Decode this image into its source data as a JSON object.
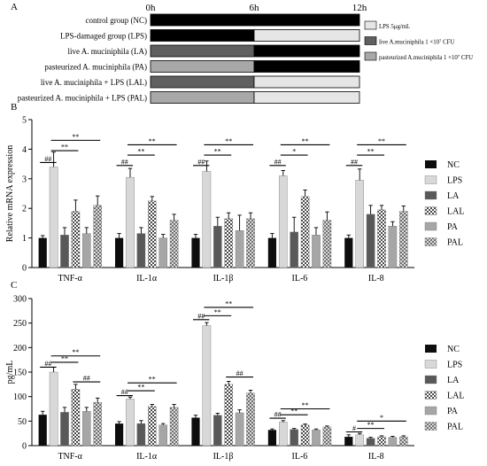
{
  "colors": {
    "NC": "#0d0d0d",
    "LPS": "#d8d8d8",
    "LA": "#595959",
    "LAL": "#b4b4b4",
    "PA": "#a6a6a6",
    "PAL": "#8c8c8c",
    "timeline_black": "#000000",
    "timeline_lps": "#e6e6e6",
    "timeline_live": "#606060",
    "timeline_past": "#a8a8a8"
  },
  "panel_a": {
    "label": "A",
    "time_labels": [
      "0h",
      "6h",
      "12h"
    ],
    "groups": [
      {
        "name": "control group (NC)",
        "first_half": "black",
        "second_half": "black"
      },
      {
        "name": "LPS-damaged group (LPS)",
        "first_half": "black",
        "second_half": "lps"
      },
      {
        "name": "live A. muciniphila (LA)",
        "first_half": "live",
        "second_half": "black"
      },
      {
        "name": "pasteurized A. muciniphila (PA)",
        "first_half": "past",
        "second_half": "black"
      },
      {
        "name": "live A. muciniphila + LPS (LAL)",
        "first_half": "live",
        "second_half": "lps"
      },
      {
        "name": "pasteurized A. muciniphila + LPS (PAL)",
        "first_half": "past",
        "second_half": "lps"
      }
    ],
    "legend": [
      {
        "label": "LPS 5μg/mL",
        "key": "lps"
      },
      {
        "label": "live A.muciniphila 1 ×10⁷ CFU",
        "key": "live"
      },
      {
        "label": "pasteurized A.muciniphila 1 ×10⁷ CFU",
        "key": "past"
      }
    ]
  },
  "chart_data": [
    {
      "panel": "B",
      "type": "bar",
      "ylabel": "Relative mRNA expression",
      "ylim": [
        0,
        5
      ],
      "yticks": [
        "0",
        "1",
        "2",
        "3",
        "4",
        "5"
      ],
      "categories": [
        "TNF-α",
        "IL-1α",
        "IL-1β",
        "IL-6",
        "IL-8"
      ],
      "legend": [
        "NC",
        "LPS",
        "LA",
        "LAL",
        "PA",
        "PAL"
      ],
      "series": [
        {
          "name": "NC",
          "values": [
            1.0,
            1.0,
            1.0,
            1.0,
            1.0
          ],
          "errors": [
            0.08,
            0.15,
            0.12,
            0.15,
            0.1
          ]
        },
        {
          "name": "LPS",
          "values": [
            3.4,
            3.05,
            3.25,
            3.1,
            2.95
          ],
          "errors": [
            0.5,
            0.3,
            0.35,
            0.18,
            0.38
          ]
        },
        {
          "name": "LA",
          "values": [
            1.1,
            1.15,
            1.4,
            1.2,
            1.8
          ],
          "errors": [
            0.25,
            0.2,
            0.3,
            0.5,
            0.3
          ]
        },
        {
          "name": "LAL",
          "values": [
            1.9,
            2.25,
            1.65,
            2.4,
            1.95
          ],
          "errors": [
            0.38,
            0.15,
            0.2,
            0.22,
            0.15
          ]
        },
        {
          "name": "PA",
          "values": [
            1.15,
            1.0,
            1.25,
            1.1,
            1.4
          ],
          "errors": [
            0.2,
            0.12,
            0.52,
            0.25,
            0.15
          ]
        },
        {
          "name": "PAL",
          "values": [
            2.1,
            1.6,
            1.65,
            1.6,
            1.9
          ],
          "errors": [
            0.32,
            0.2,
            0.2,
            0.28,
            0.18
          ]
        }
      ],
      "annotations": [
        {
          "group": 0,
          "text": "##",
          "from": 0,
          "to": 1,
          "level": 3.55
        },
        {
          "group": 0,
          "text": "**",
          "from": 1,
          "to": 3,
          "level": 3.95
        },
        {
          "group": 0,
          "text": "**",
          "from": 1,
          "to": 5,
          "level": 4.3
        },
        {
          "group": 1,
          "text": "##",
          "from": 0,
          "to": 1,
          "level": 3.45
        },
        {
          "group": 1,
          "text": "**",
          "from": 1,
          "to": 3,
          "level": 3.8
        },
        {
          "group": 1,
          "text": "**",
          "from": 1,
          "to": 5,
          "level": 4.15
        },
        {
          "group": 2,
          "text": "##",
          "from": 0,
          "to": 1,
          "level": 3.45
        },
        {
          "group": 2,
          "text": "**",
          "from": 1,
          "to": 3,
          "level": 3.8
        },
        {
          "group": 2,
          "text": "**",
          "from": 1,
          "to": 5,
          "level": 4.15
        },
        {
          "group": 3,
          "text": "##",
          "from": 0,
          "to": 1,
          "level": 3.45
        },
        {
          "group": 3,
          "text": "*",
          "from": 1,
          "to": 3,
          "level": 3.8
        },
        {
          "group": 3,
          "text": "**",
          "from": 1,
          "to": 5,
          "level": 4.15
        },
        {
          "group": 4,
          "text": "##",
          "from": 0,
          "to": 1,
          "level": 3.45
        },
        {
          "group": 4,
          "text": "**",
          "from": 1,
          "to": 3,
          "level": 3.8
        },
        {
          "group": 4,
          "text": "**",
          "from": 1,
          "to": 5,
          "level": 4.15
        }
      ]
    },
    {
      "panel": "C",
      "type": "bar",
      "ylabel": "pg/mL",
      "ylim": [
        0,
        300
      ],
      "yticks": [
        "0",
        "50",
        "100",
        "150",
        "200",
        "250",
        "300"
      ],
      "categories": [
        "TNF-α",
        "IL-1α",
        "IL-1β",
        "IL-6",
        "IL-8"
      ],
      "legend": [
        "NC",
        "LPS",
        "LA",
        "LAL",
        "PA",
        "PAL"
      ],
      "series": [
        {
          "name": "NC",
          "values": [
            63,
            45,
            57,
            32,
            18
          ],
          "errors": [
            7,
            4,
            5,
            2,
            4
          ]
        },
        {
          "name": "LPS",
          "values": [
            150,
            95,
            245,
            48,
            22
          ],
          "errors": [
            10,
            4,
            6,
            3,
            3
          ]
        },
        {
          "name": "LA",
          "values": [
            68,
            45,
            62,
            33,
            15
          ],
          "errors": [
            10,
            6,
            4,
            2,
            2
          ]
        },
        {
          "name": "LAL",
          "values": [
            115,
            80,
            125,
            42,
            18
          ],
          "errors": [
            10,
            4,
            6,
            2,
            2
          ]
        },
        {
          "name": "PA",
          "values": [
            70,
            42,
            67,
            32,
            17
          ],
          "errors": [
            8,
            3,
            6,
            2,
            2
          ]
        },
        {
          "name": "PAL",
          "values": [
            88,
            78,
            107,
            38,
            18
          ],
          "errors": [
            9,
            6,
            6,
            2,
            2
          ]
        }
      ],
      "annotations": [
        {
          "group": 0,
          "text": "##",
          "from": 0,
          "to": 1,
          "level": 160
        },
        {
          "group": 0,
          "text": "**",
          "from": 1,
          "to": 3,
          "level": 170
        },
        {
          "group": 0,
          "text": "**",
          "from": 1,
          "to": 5,
          "level": 183
        },
        {
          "group": 0,
          "text": "##",
          "from": 3,
          "to": 5,
          "level": 130
        },
        {
          "group": 1,
          "text": "##",
          "from": 0,
          "to": 1,
          "level": 102
        },
        {
          "group": 1,
          "text": "**",
          "from": 1,
          "to": 3,
          "level": 112
        },
        {
          "group": 1,
          "text": "**",
          "from": 1,
          "to": 5,
          "level": 128
        },
        {
          "group": 2,
          "text": "##",
          "from": 0,
          "to": 1,
          "level": 257
        },
        {
          "group": 2,
          "text": "**",
          "from": 1,
          "to": 3,
          "level": 265
        },
        {
          "group": 2,
          "text": "**",
          "from": 1,
          "to": 5,
          "level": 282
        },
        {
          "group": 2,
          "text": "##",
          "from": 3,
          "to": 5,
          "level": 140
        },
        {
          "group": 3,
          "text": "##",
          "from": 0,
          "to": 1,
          "level": 56
        },
        {
          "group": 3,
          "text": "**",
          "from": 1,
          "to": 3,
          "level": 63
        },
        {
          "group": 3,
          "text": "**",
          "from": 1,
          "to": 5,
          "level": 75
        },
        {
          "group": 4,
          "text": "#",
          "from": 0,
          "to": 1,
          "level": 28
        },
        {
          "group": 4,
          "text": "**",
          "from": 1,
          "to": 3,
          "level": 35
        },
        {
          "group": 4,
          "text": "*",
          "from": 1,
          "to": 5,
          "level": 50
        }
      ]
    }
  ]
}
